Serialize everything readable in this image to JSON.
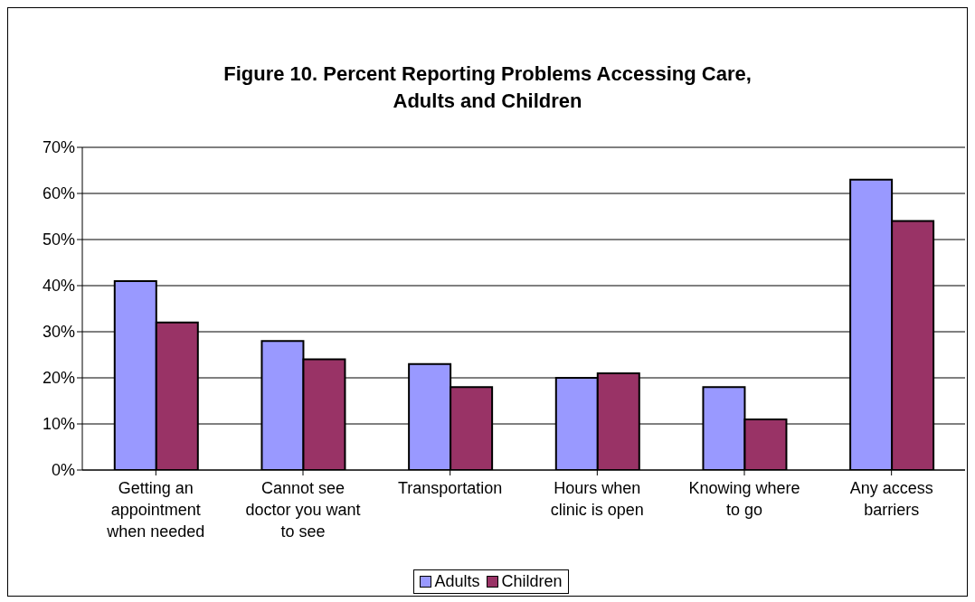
{
  "chart_data": {
    "type": "bar",
    "title": "Figure 10. Percent Reporting Problems Accessing Care,\nAdults and Children",
    "categories": [
      "Getting an appointment when needed",
      "Cannot see doctor you want to see",
      "Transportation",
      "Hours when clinic is open",
      "Knowing where to go",
      "Any access barriers"
    ],
    "series": [
      {
        "name": "Adults",
        "color": "#9999ff",
        "values": [
          41,
          28,
          23,
          20,
          18,
          63
        ]
      },
      {
        "name": "Children",
        "color": "#993366",
        "values": [
          32,
          24,
          18,
          21,
          11,
          54
        ]
      }
    ],
    "ylim": [
      0,
      70
    ],
    "yticks": [
      {
        "value": 0,
        "label": "0%"
      },
      {
        "value": 10,
        "label": "10%"
      },
      {
        "value": 20,
        "label": "20%"
      },
      {
        "value": 30,
        "label": "30%"
      },
      {
        "value": 40,
        "label": "40%"
      },
      {
        "value": 50,
        "label": "50%"
      },
      {
        "value": 60,
        "label": "60%"
      },
      {
        "value": 70,
        "label": "70%"
      }
    ],
    "grid": "y",
    "legend": "bottom"
  }
}
